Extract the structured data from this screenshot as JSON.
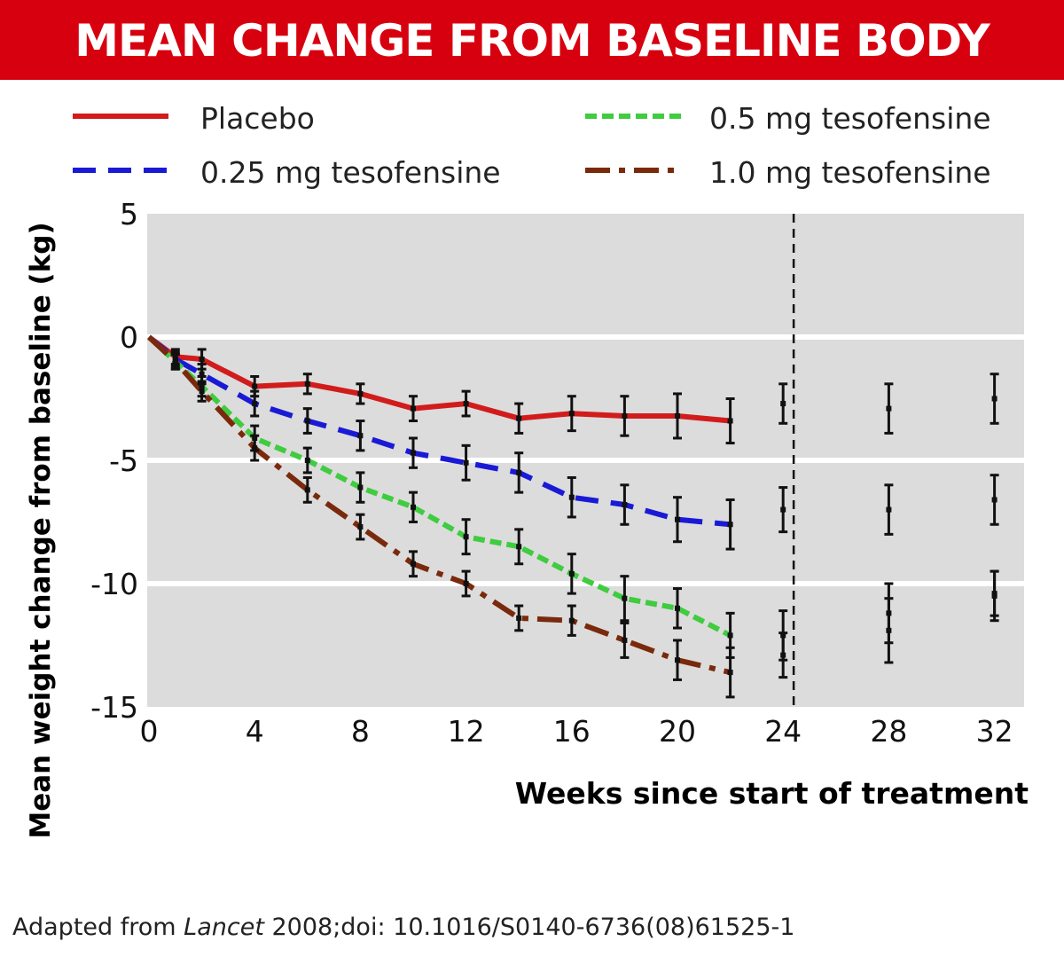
{
  "header": {
    "title": "MEAN CHANGE FROM BASELINE BODY WEIGHT"
  },
  "footer": {
    "source_prefix": "Adapted from ",
    "source_journal": "Lancet",
    "source_suffix": " 2008;doi: 10.1016/S0140-6736(08)61525-1"
  },
  "colors": {
    "title_bar": "#d7000f",
    "plot_bg": "#dcdcdc",
    "gridline": "#ffffff",
    "errorbar": "#111111"
  },
  "chart_data": {
    "type": "line",
    "title": "MEAN CHANGE FROM BASELINE BODY WEIGHT",
    "xlabel": "Weeks since start of treatment",
    "ylabel": "Mean weight change from baseline (kg)",
    "xlim": [
      0,
      33
    ],
    "ylim": [
      -15,
      5
    ],
    "xticks": [
      0,
      4,
      8,
      12,
      16,
      20,
      24,
      28,
      32
    ],
    "yticks": [
      5,
      0,
      -5,
      -10,
      -15
    ],
    "ytick_labels": [
      "5",
      "0",
      "-5",
      "-10",
      "-15"
    ],
    "gridlines_y": [
      0,
      -5,
      -10
    ],
    "vertical_reference_line": {
      "x": 24.4,
      "style": "dashed"
    },
    "legend_position": "top",
    "series": [
      {
        "name": "Placebo",
        "color": "#d21c1c",
        "dash": "solid",
        "x": [
          0,
          1,
          2,
          4,
          6,
          8,
          10,
          12,
          14,
          16,
          18,
          20,
          22
        ],
        "values": [
          0,
          -0.8,
          -0.9,
          -2.0,
          -1.9,
          -2.3,
          -2.9,
          -2.7,
          -3.3,
          -3.1,
          -3.2,
          -3.2,
          -3.4
        ],
        "errors": [
          0,
          0.3,
          0.4,
          0.4,
          0.4,
          0.4,
          0.5,
          0.5,
          0.6,
          0.7,
          0.8,
          0.9,
          0.9
        ]
      },
      {
        "name": "0.25 mg tesofensine",
        "color": "#1a1ad6",
        "dash": "dashed",
        "x": [
          0,
          1,
          2,
          4,
          6,
          8,
          10,
          12,
          14,
          16,
          18,
          20,
          22
        ],
        "values": [
          0,
          -0.9,
          -1.5,
          -2.7,
          -3.4,
          -4.0,
          -4.7,
          -5.1,
          -5.5,
          -6.5,
          -6.8,
          -7.4,
          -7.6
        ],
        "errors": [
          0,
          0.3,
          0.4,
          0.5,
          0.5,
          0.6,
          0.6,
          0.7,
          0.8,
          0.8,
          0.8,
          0.9,
          1.0
        ]
      },
      {
        "name": "0.5 mg tesofensine",
        "color": "#3fcc3f",
        "dash": "dotted",
        "x": [
          0,
          1,
          2,
          4,
          6,
          8,
          10,
          12,
          14,
          16,
          18,
          20,
          22
        ],
        "values": [
          0,
          -1.0,
          -2.0,
          -4.1,
          -5.0,
          -6.1,
          -6.9,
          -8.1,
          -8.5,
          -9.6,
          -10.6,
          -11.0,
          -12.1
        ],
        "errors": [
          0,
          0.3,
          0.4,
          0.5,
          0.5,
          0.6,
          0.6,
          0.7,
          0.7,
          0.8,
          0.9,
          0.8,
          0.9
        ]
      },
      {
        "name": "1.0 mg tesofensine",
        "color": "#7a2a0c",
        "dash": "dashdot",
        "x": [
          0,
          1,
          2,
          4,
          6,
          8,
          10,
          12,
          14,
          16,
          18,
          20,
          22
        ],
        "values": [
          0,
          -1.0,
          -2.2,
          -4.5,
          -6.2,
          -7.7,
          -9.2,
          -10.0,
          -11.4,
          -11.5,
          -12.3,
          -13.1,
          -13.6
        ],
        "errors": [
          0,
          0.3,
          0.4,
          0.5,
          0.5,
          0.5,
          0.5,
          0.5,
          0.5,
          0.6,
          0.7,
          0.8,
          1.0
        ]
      }
    ],
    "followup_errorbars": [
      {
        "x": 24,
        "mean": -2.7,
        "error": 0.8
      },
      {
        "x": 24,
        "mean": -7.0,
        "error": 0.9
      },
      {
        "x": 24,
        "mean": -12.1,
        "error": 1.0
      },
      {
        "x": 24,
        "mean": -12.9,
        "error": 0.9
      },
      {
        "x": 28,
        "mean": -2.9,
        "error": 1.0
      },
      {
        "x": 28,
        "mean": -7.0,
        "error": 1.0
      },
      {
        "x": 28,
        "mean": -11.2,
        "error": 1.2
      },
      {
        "x": 28,
        "mean": -11.9,
        "error": 1.3
      },
      {
        "x": 32,
        "mean": -2.5,
        "error": 1.0
      },
      {
        "x": 32,
        "mean": -6.6,
        "error": 1.0
      },
      {
        "x": 32,
        "mean": -10.4,
        "error": 0.9
      },
      {
        "x": 32,
        "mean": -10.5,
        "error": 1.0
      }
    ]
  }
}
